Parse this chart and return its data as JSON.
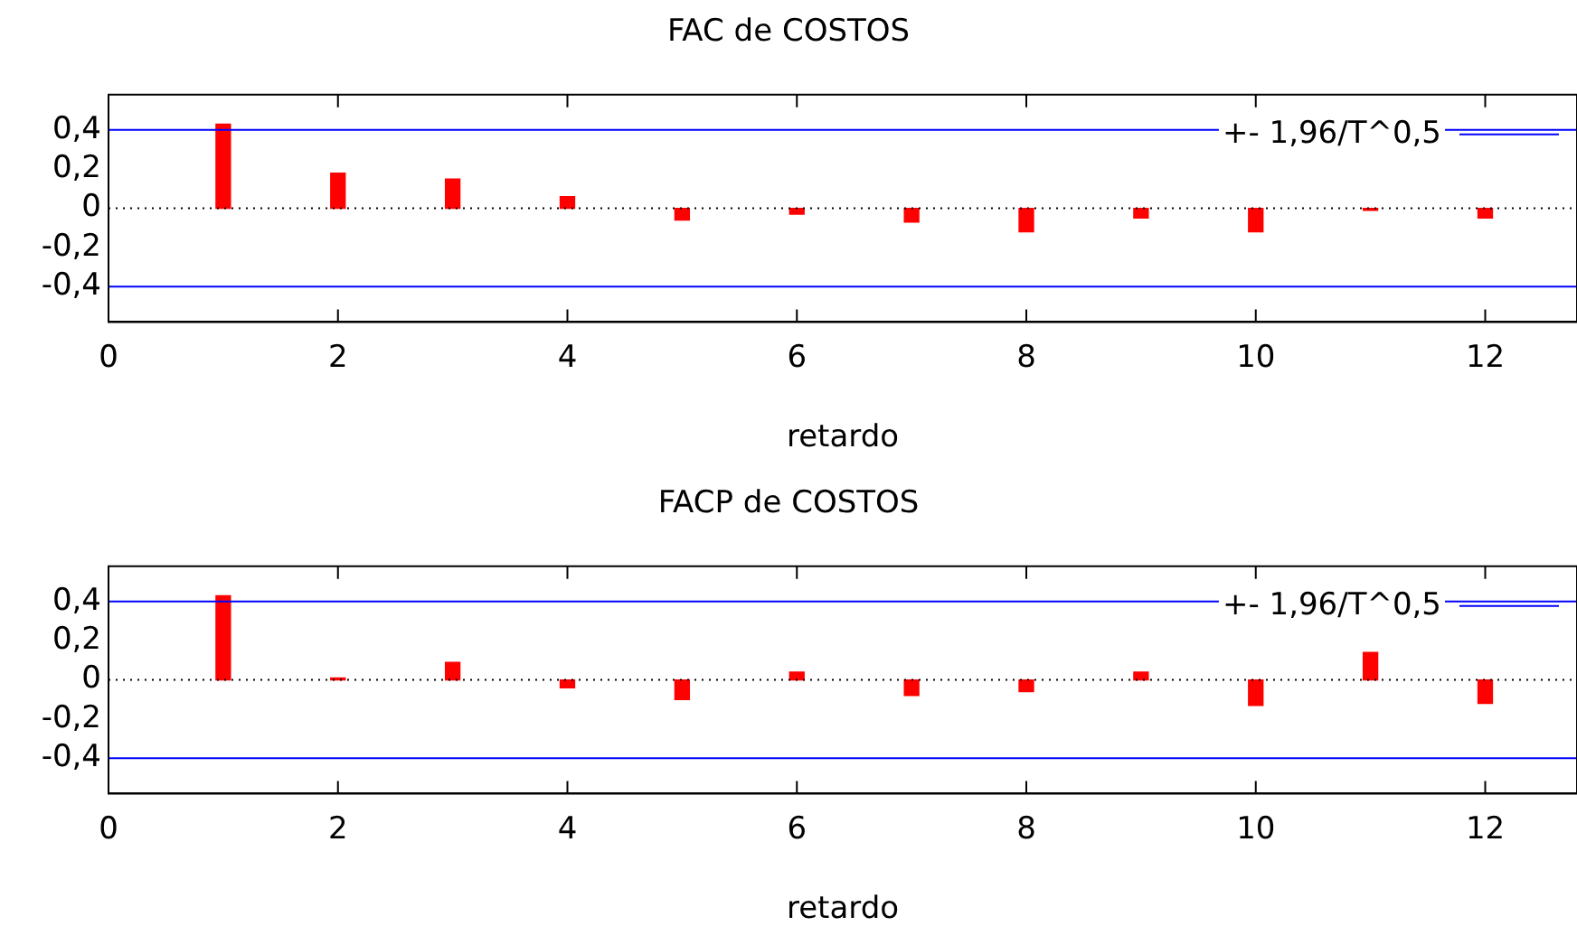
{
  "chart_data": [
    {
      "type": "bar",
      "title": "FAC de COSTOS",
      "xlabel": "retardo",
      "x": [
        1,
        2,
        3,
        4,
        5,
        6,
        7,
        8,
        9,
        10,
        11,
        12
      ],
      "series": [
        {
          "color": "#ff0000",
          "values": [
            0.43,
            0.18,
            0.15,
            0.06,
            -0.06,
            -0.03,
            -0.07,
            -0.12,
            -0.05,
            -0.12,
            -0.01,
            -0.05
          ]
        }
      ],
      "xlim": [
        0,
        12.8
      ],
      "xticks": [
        0,
        2,
        4,
        6,
        8,
        10,
        12
      ],
      "ylim": [
        -0.58,
        0.58
      ],
      "yticks": [
        {
          "value": 0.4,
          "label": "0,4"
        },
        {
          "value": 0.2,
          "label": "0,2"
        },
        0,
        {
          "value": -0.2,
          "label": "-0,2"
        },
        {
          "value": -0.4,
          "label": "-0,4"
        }
      ],
      "ref_lines": [
        {
          "axis": "y",
          "value": 0.4,
          "label": "+- 1,96/T^0,5",
          "color": "#0000ff"
        },
        {
          "axis": "y",
          "value": -0.4,
          "color": "#0000ff"
        },
        {
          "axis": "y",
          "value": 0,
          "color": "#000000",
          "line_style": "dotted"
        }
      ],
      "grid": false,
      "legend": "top right"
    },
    {
      "type": "bar",
      "title": "FACP de COSTOS",
      "xlabel": "retardo",
      "x": [
        1,
        2,
        3,
        4,
        5,
        6,
        7,
        8,
        9,
        10,
        11,
        12
      ],
      "series": [
        {
          "color": "#ff0000",
          "values": [
            0.43,
            0.01,
            0.09,
            -0.04,
            -0.1,
            0.04,
            -0.08,
            -0.06,
            0.04,
            -0.13,
            0.14,
            -0.12
          ]
        }
      ],
      "xlim": [
        0,
        12.8
      ],
      "xticks": [
        0,
        2,
        4,
        6,
        8,
        10,
        12
      ],
      "ylim": [
        -0.58,
        0.58
      ],
      "yticks": [
        {
          "value": 0.4,
          "label": "0,4"
        },
        {
          "value": 0.2,
          "label": "0,2"
        },
        0,
        {
          "value": -0.2,
          "label": "-0,2"
        },
        {
          "value": -0.4,
          "label": "-0,4"
        }
      ],
      "ref_lines": [
        {
          "axis": "y",
          "value": 0.4,
          "label": "+- 1,96/T^0,5",
          "color": "#0000ff"
        },
        {
          "axis": "y",
          "value": -0.4,
          "color": "#0000ff"
        },
        {
          "axis": "y",
          "value": 0,
          "color": "#000000",
          "line_style": "dotted"
        }
      ],
      "grid": false,
      "legend": "top right"
    }
  ]
}
